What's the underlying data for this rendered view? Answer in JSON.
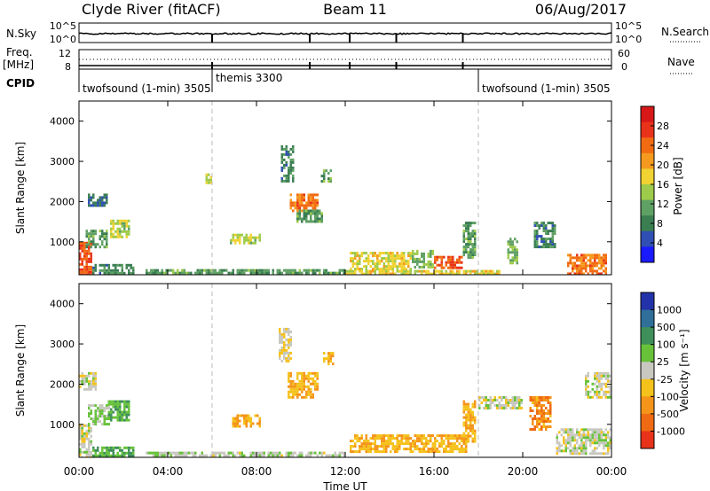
{
  "header": {
    "title_left": "Clyde River (fitACF)",
    "title_center": "Beam 11",
    "title_right": "06/Aug/2017"
  },
  "strip_labels": {
    "nsky": "N.Sky",
    "nsearch": "N.Search",
    "freq": "Freq.",
    "freq_unit": "[MHz]",
    "nave": "Nave",
    "cpid": "CPID"
  },
  "strip_ticks": {
    "nsky_top": "10^5",
    "nsky_bottom": "10^0",
    "nsearch_top": "10^5",
    "nsearch_bottom": "10^0",
    "freq_top": "12",
    "freq_bottom": "8",
    "nave_top": "60",
    "nave_bottom": "0"
  },
  "cpid_segments": [
    {
      "label": "twofsound (1-min) 3505",
      "start_hour": 0,
      "end_hour": 6
    },
    {
      "label": "themis 3300",
      "start_hour": 6,
      "end_hour": 18
    },
    {
      "label": "twofsound (1-min) 3505",
      "start_hour": 18,
      "end_hour": 24
    }
  ],
  "axes": {
    "ylabel": "Slant Range [km]",
    "xlabel": "Time UT",
    "y_ticks": [
      "1000",
      "2000",
      "3000",
      "4000"
    ],
    "x_ticks": [
      "00:00",
      "04:00",
      "08:00",
      "12:00",
      "16:00",
      "20:00",
      "00:00"
    ]
  },
  "power_bar": {
    "label": "Power [dB]",
    "ticks": [
      "4",
      "8",
      "12",
      "16",
      "20",
      "24",
      "28"
    ],
    "colors": [
      "#1a1aff",
      "#2f4fb4",
      "#3a7e52",
      "#5fa064",
      "#9ecb4b",
      "#f0d232",
      "#f59a1f",
      "#f26b12",
      "#e8321a",
      "#d81818"
    ]
  },
  "velocity_bar": {
    "label": "Velocity [m s⁻¹]",
    "ticks": [
      "1000",
      "500",
      "100",
      "25",
      "-25",
      "-100",
      "-500",
      "-1000"
    ],
    "colors": [
      "#2233aa",
      "#2f6f9a",
      "#3e8f5a",
      "#67c23a",
      "#c8c8c0",
      "#f5c21c",
      "#f5941a",
      "#ef6a12",
      "#e8321a"
    ]
  },
  "chart_data": [
    {
      "type": "heatmap",
      "title": "Power",
      "variable": "Power",
      "unit": "dB",
      "xlabel": "Time UT",
      "ylabel": "Slant Range [km]",
      "xlim_hours": [
        0,
        24
      ],
      "ylim_km": [
        180,
        4500
      ],
      "clim": [
        0,
        30
      ],
      "regions": [
        {
          "t0": 0.0,
          "t1": 0.6,
          "r0": 180,
          "r1": 1000,
          "value": 24
        },
        {
          "t0": 0.6,
          "t1": 2.5,
          "r0": 180,
          "r1": 450,
          "value": 8
        },
        {
          "t0": 0.3,
          "t1": 1.3,
          "r0": 900,
          "r1": 1300,
          "value": 10
        },
        {
          "t0": 1.4,
          "t1": 2.3,
          "r0": 1100,
          "r1": 1550,
          "value": 14
        },
        {
          "t0": 0.4,
          "t1": 1.3,
          "r0": 1900,
          "r1": 2200,
          "value": 6
        },
        {
          "t0": 5.7,
          "t1": 6.0,
          "r0": 2500,
          "r1": 2700,
          "value": 14
        },
        {
          "t0": 6.8,
          "t1": 8.2,
          "r0": 950,
          "r1": 1200,
          "value": 14
        },
        {
          "t0": 9.1,
          "t1": 9.7,
          "r0": 2500,
          "r1": 3400,
          "value": 8
        },
        {
          "t0": 9.5,
          "t1": 10.8,
          "r0": 1800,
          "r1": 2200,
          "value": 22
        },
        {
          "t0": 9.8,
          "t1": 11.0,
          "r0": 1500,
          "r1": 1800,
          "value": 10
        },
        {
          "t0": 10.9,
          "t1": 11.4,
          "r0": 2500,
          "r1": 2800,
          "value": 10
        },
        {
          "t0": 12.2,
          "t1": 15.0,
          "r0": 300,
          "r1": 750,
          "value": 16
        },
        {
          "t0": 15.0,
          "t1": 16.0,
          "r0": 400,
          "r1": 800,
          "value": 12
        },
        {
          "t0": 16.0,
          "t1": 17.3,
          "r0": 350,
          "r1": 650,
          "value": 24
        },
        {
          "t0": 17.3,
          "t1": 17.9,
          "r0": 600,
          "r1": 1500,
          "value": 10
        },
        {
          "t0": 19.3,
          "t1": 19.8,
          "r0": 500,
          "r1": 1100,
          "value": 12
        },
        {
          "t0": 20.5,
          "t1": 21.5,
          "r0": 900,
          "r1": 1500,
          "value": 8
        },
        {
          "t0": 22.0,
          "t1": 23.8,
          "r0": 200,
          "r1": 700,
          "value": 22
        },
        {
          "t0": 12.0,
          "t1": 19.0,
          "r0": 180,
          "r1": 300,
          "value": 16
        },
        {
          "t0": 3.0,
          "t1": 12.0,
          "r0": 180,
          "r1": 320,
          "value": 10
        }
      ]
    },
    {
      "type": "heatmap",
      "title": "Velocity",
      "variable": "Velocity",
      "unit": "m s-1",
      "xlabel": "Time UT",
      "ylabel": "Slant Range [km]",
      "xlim_hours": [
        0,
        24
      ],
      "ylim_km": [
        180,
        4500
      ],
      "clim": [
        -1000,
        1000
      ],
      "regions": [
        {
          "t0": 0.0,
          "t1": 0.6,
          "r0": 180,
          "r1": 1000,
          "value": 0
        },
        {
          "t0": 0.6,
          "t1": 2.5,
          "r0": 180,
          "r1": 450,
          "value": 300
        },
        {
          "t0": 0.4,
          "t1": 1.4,
          "r0": 1000,
          "r1": 1500,
          "value": 150
        },
        {
          "t0": 1.3,
          "t1": 2.3,
          "r0": 1100,
          "r1": 1600,
          "value": 300
        },
        {
          "t0": 0.0,
          "t1": 0.8,
          "r0": 1900,
          "r1": 2300,
          "value": 0
        },
        {
          "t0": 6.9,
          "t1": 8.2,
          "r0": 950,
          "r1": 1250,
          "value": -300
        },
        {
          "t0": 9.4,
          "t1": 10.8,
          "r0": 1700,
          "r1": 2300,
          "value": -300
        },
        {
          "t0": 9.0,
          "t1": 9.6,
          "r0": 2600,
          "r1": 3400,
          "value": -100
        },
        {
          "t0": 11.0,
          "t1": 11.5,
          "r0": 2500,
          "r1": 2800,
          "value": -300
        },
        {
          "t0": 12.2,
          "t1": 17.5,
          "r0": 300,
          "r1": 750,
          "value": -300
        },
        {
          "t0": 17.3,
          "t1": 17.9,
          "r0": 600,
          "r1": 1600,
          "value": -300
        },
        {
          "t0": 18.0,
          "t1": 20.0,
          "r0": 1400,
          "r1": 1700,
          "value": 0
        },
        {
          "t0": 20.3,
          "t1": 21.3,
          "r0": 900,
          "r1": 1700,
          "value": -500
        },
        {
          "t0": 21.5,
          "t1": 24.0,
          "r0": 300,
          "r1": 900,
          "value": 0
        },
        {
          "t0": 22.8,
          "t1": 24.0,
          "r0": 1700,
          "r1": 2300,
          "value": 0
        },
        {
          "t0": 3.0,
          "t1": 12.0,
          "r0": 180,
          "r1": 320,
          "value": 60
        }
      ]
    }
  ]
}
